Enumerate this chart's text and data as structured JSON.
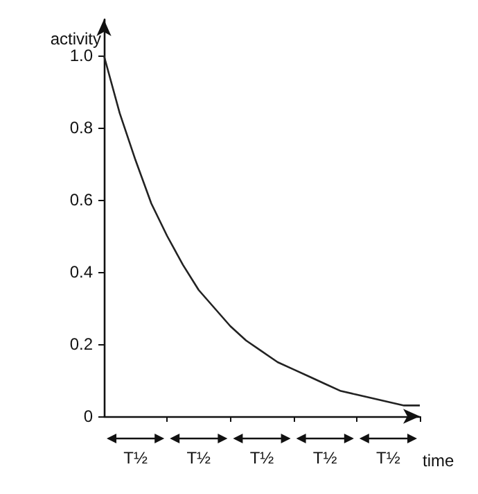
{
  "chart_data": {
    "type": "line",
    "xlabel": "time",
    "ylabel": "activity",
    "categories": [
      null,
      null,
      "T½",
      null,
      null,
      null,
      "T½",
      null,
      null,
      null,
      "T½",
      null,
      null,
      null,
      "T½",
      null,
      null,
      null,
      "T½",
      null,
      null
    ],
    "series": [
      {
        "color": "#222222",
        "values": [
          1,
          0.84,
          0.71,
          0.59,
          0.5,
          0.42,
          0.35,
          0.3,
          0.25,
          0.21,
          0.18,
          0.15,
          0.13,
          0.11,
          0.09,
          0.07,
          0.06,
          0.05,
          0.04,
          0.03,
          0.03
        ]
      }
    ],
    "ylim": [
      0,
      1.1
    ],
    "yticks": [
      0,
      0.2,
      0.4,
      0.6,
      0.8,
      {
        "value": 1,
        "label": "1.0"
      }
    ],
    "grid": false,
    "marker": "none",
    "line_style": "solid"
  }
}
